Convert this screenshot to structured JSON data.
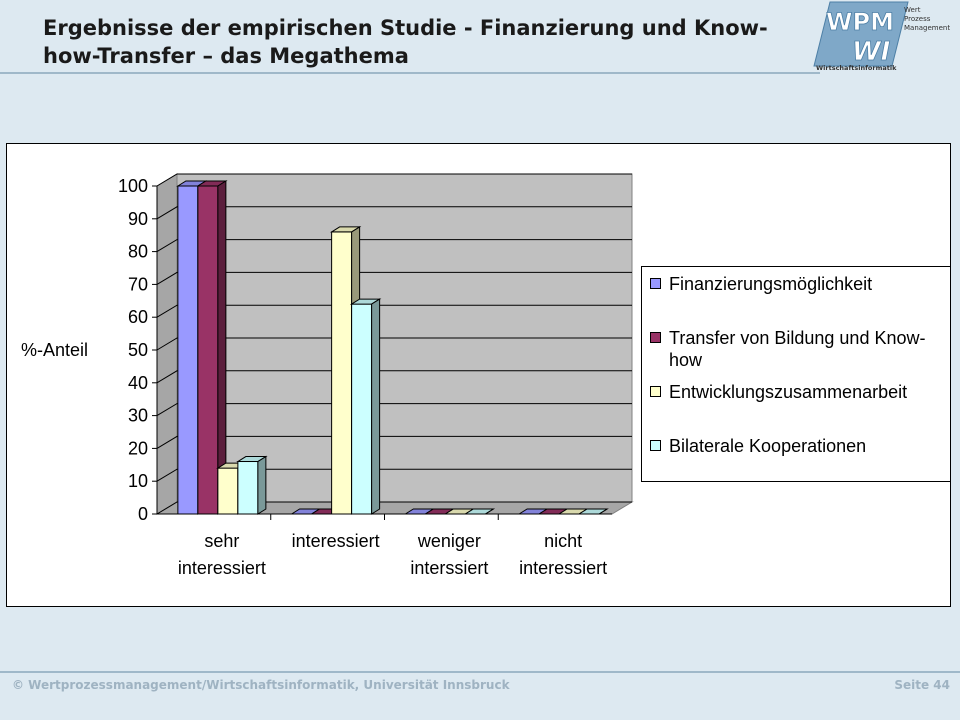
{
  "slide": {
    "title": "Ergebnisse der empirischen Studie - Finanzierung und Know-how-Transfer – das Megathema"
  },
  "logo": {
    "text_wpm": "WPM",
    "text_wi": "WI",
    "lines": [
      "Wert",
      "Prozess",
      "Management"
    ],
    "subtitle": "Wirtschaftsinformatik"
  },
  "footer": {
    "left": "© Wertprozessmanagement/Wirtschaftsinformatik, Universität Innsbruck",
    "right": "Seite 44"
  },
  "colors": {
    "background": "#dde9f1",
    "plot_wall": "#c0c0c0",
    "series": [
      "#9999ff",
      "#993366",
      "#ffffcc",
      "#ccffff"
    ]
  },
  "chart_data": {
    "type": "bar",
    "ylabel": "%-Anteil",
    "ylim": [
      0,
      100
    ],
    "yticks": [
      0,
      10,
      20,
      30,
      40,
      50,
      60,
      70,
      80,
      90,
      100
    ],
    "categories": [
      [
        "sehr",
        "interessiert"
      ],
      [
        "interessiert"
      ],
      [
        "weniger",
        "interssiert"
      ],
      [
        "nicht",
        "interessiert"
      ]
    ],
    "series": [
      {
        "name": "Finanzierungsmöglichkeit",
        "values": [
          100,
          0,
          0,
          0
        ]
      },
      {
        "name": "Transfer von Bildung und Know-how",
        "values": [
          100,
          0,
          0,
          0
        ]
      },
      {
        "name": "Entwicklungszusammenarbeit",
        "values": [
          14,
          86,
          0,
          0
        ]
      },
      {
        "name": "Bilaterale Kooperationen",
        "values": [
          16,
          64,
          0,
          0
        ]
      }
    ],
    "legend_position": "right",
    "grid": true
  }
}
